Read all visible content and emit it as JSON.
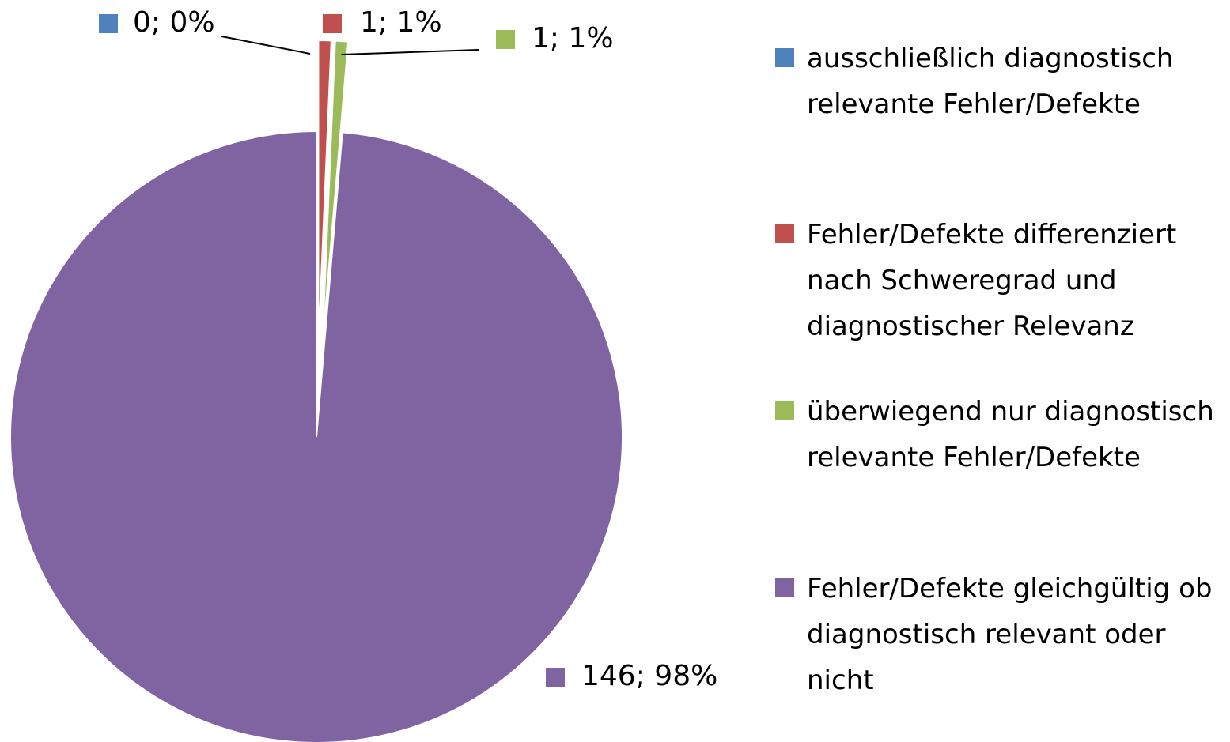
{
  "chart_data": {
    "type": "pie",
    "categories": [
      "ausschließlich diagnostisch relevante Fehler/Defekte",
      "Fehler/Defekte differenziert nach Schweregrad und diagnostischer Relevanz",
      "überwiegend nur diagnostisch relevante Fehler/Defekte",
      "Fehler/Defekte gleichgültig ob diagnostisch relevant oder nicht"
    ],
    "values": [
      0,
      1,
      1,
      146
    ],
    "value_labels": [
      "0; 0%",
      "1; 1%",
      "1; 1%",
      "146; 98%"
    ],
    "colors": [
      "#4f81bd",
      "#c0504d",
      "#9bbb59",
      "#8064a2"
    ],
    "legend": "right"
  }
}
